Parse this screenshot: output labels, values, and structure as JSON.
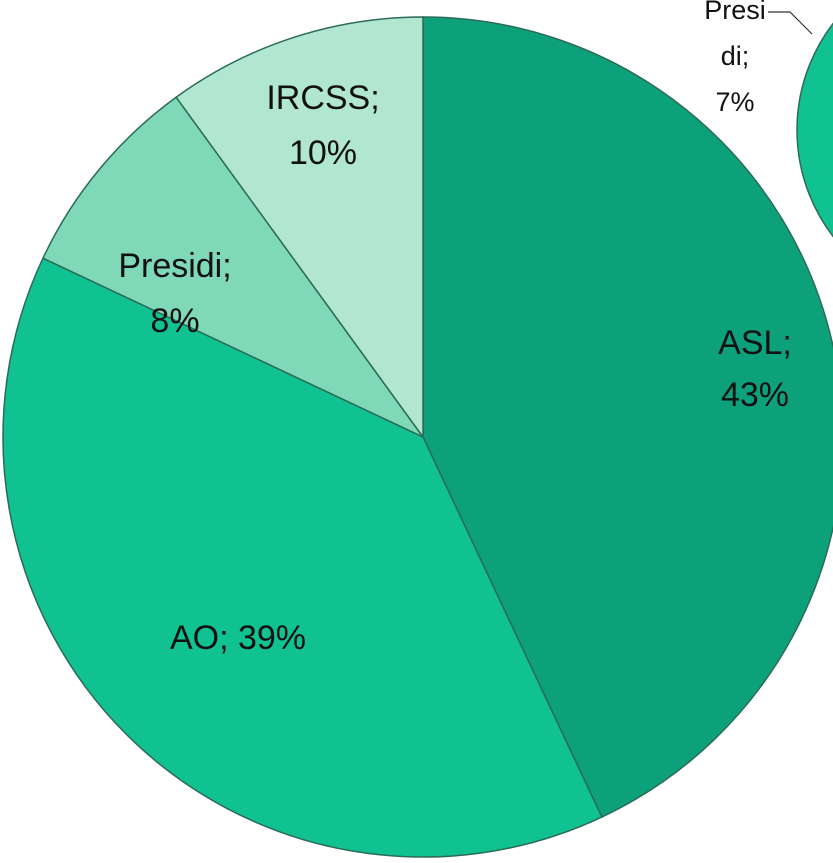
{
  "chart_data": [
    {
      "type": "pie",
      "categories": [
        "ASL",
        "AO",
        "Presidi",
        "IRCSS"
      ],
      "values": [
        43,
        39,
        8,
        10
      ],
      "value_labels": [
        "ASL; 43%",
        "AO; 39%",
        "Presidi; 8%",
        "IRCSS; 10%"
      ],
      "colors": [
        "#0da17b",
        "#10c292",
        "#7fd9b8",
        "#b1e6d1"
      ]
    },
    {
      "type": "pie",
      "categories": [
        "Presidi"
      ],
      "values": [
        7
      ],
      "value_labels": [
        "Presidi; 7%"
      ],
      "colors": [
        "#5fd3aa"
      ]
    }
  ]
}
